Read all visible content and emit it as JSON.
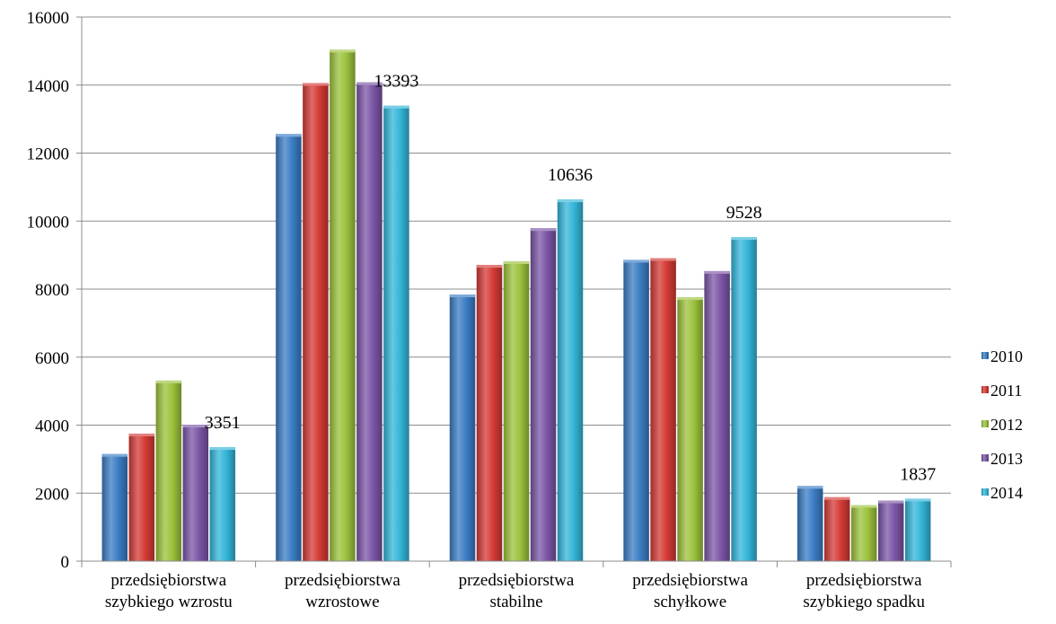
{
  "chart_data": {
    "type": "bar",
    "categories": [
      [
        "przedsiębiorstwa",
        "szybkiego wzrostu"
      ],
      [
        "przedsiębiorstwa",
        "wzrostowe"
      ],
      [
        "przedsiębiorstwa",
        "stabilne"
      ],
      [
        "przedsiębiorstwa",
        "schyłkowe"
      ],
      [
        "przedsiębiorstwa",
        "szybkiego spadku"
      ]
    ],
    "series": [
      {
        "name": "2010",
        "color": "#3a7cc4",
        "values": [
          3150,
          12560,
          7840,
          8860,
          2210
        ]
      },
      {
        "name": "2011",
        "color": "#d43a35",
        "values": [
          3750,
          14060,
          8710,
          8910,
          1880
        ]
      },
      {
        "name": "2012",
        "color": "#9cc23c",
        "values": [
          5310,
          15040,
          8820,
          7760,
          1650
        ]
      },
      {
        "name": "2013",
        "color": "#7b55a6",
        "values": [
          4010,
          14080,
          9790,
          8530,
          1780
        ]
      },
      {
        "name": "2014",
        "color": "#33b5d8",
        "values": [
          3351,
          13393,
          10636,
          9528,
          1837
        ]
      }
    ],
    "data_labels": [
      {
        "category_index": 0,
        "series_index": 4,
        "text": "3351"
      },
      {
        "category_index": 1,
        "series_index": 4,
        "text": "13393"
      },
      {
        "category_index": 2,
        "series_index": 4,
        "text": "10636"
      },
      {
        "category_index": 3,
        "series_index": 4,
        "text": "9528"
      },
      {
        "category_index": 4,
        "series_index": 4,
        "text": "1837"
      }
    ],
    "ylim": [
      0,
      16000
    ],
    "yticks": [
      0,
      2000,
      4000,
      6000,
      8000,
      10000,
      12000,
      14000,
      16000
    ],
    "grid": true,
    "legend_position": "right",
    "title": "",
    "xlabel": "",
    "ylabel": ""
  }
}
